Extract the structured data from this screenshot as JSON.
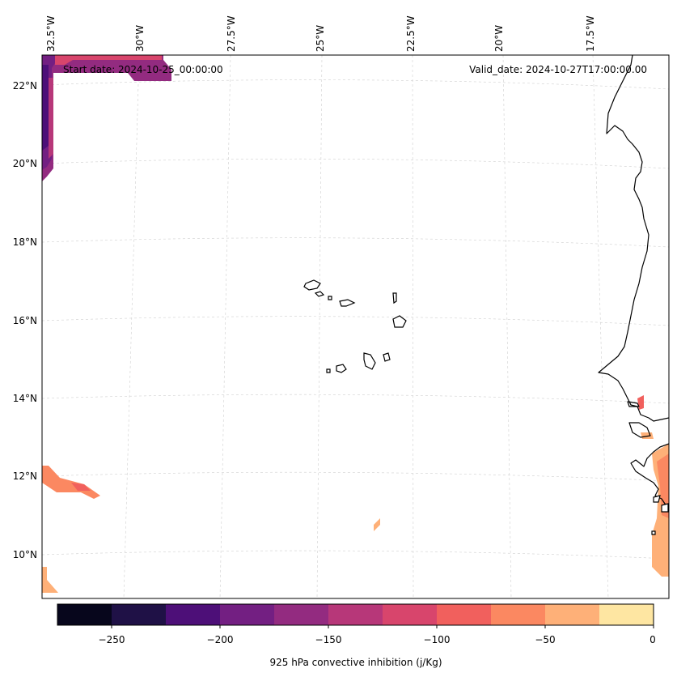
{
  "map": {
    "lon_labels": [
      "32.5°W",
      "30°W",
      "27.5°W",
      "25°W",
      "22.5°W",
      "20°W",
      "17.5°W"
    ],
    "lat_labels": [
      "22°N",
      "20°N",
      "18°N",
      "16°N",
      "14°N",
      "12°N",
      "10°N"
    ],
    "start_date_label": "Start date: 2024-10-25_00:00:00",
    "valid_date_label": "Valid_date: 2024-10-27T17:00:00.00",
    "gridlines": true
  },
  "colorbar": {
    "label": "925 hPa convective inhibition (j/Kg)",
    "tick_labels": [
      "−250",
      "−200",
      "−150",
      "−100",
      "−50",
      "0"
    ],
    "levels": [
      -275,
      -250,
      -225,
      -200,
      -175,
      -150,
      -125,
      -100,
      -75,
      -50,
      -25,
      0
    ],
    "colors": [
      "#07061c",
      "#1f1146",
      "#4d0f78",
      "#731f82",
      "#932b80",
      "#b73779",
      "#d8456c",
      "#f1605d",
      "#fb8861",
      "#feb078",
      "#fee6a2"
    ]
  }
}
